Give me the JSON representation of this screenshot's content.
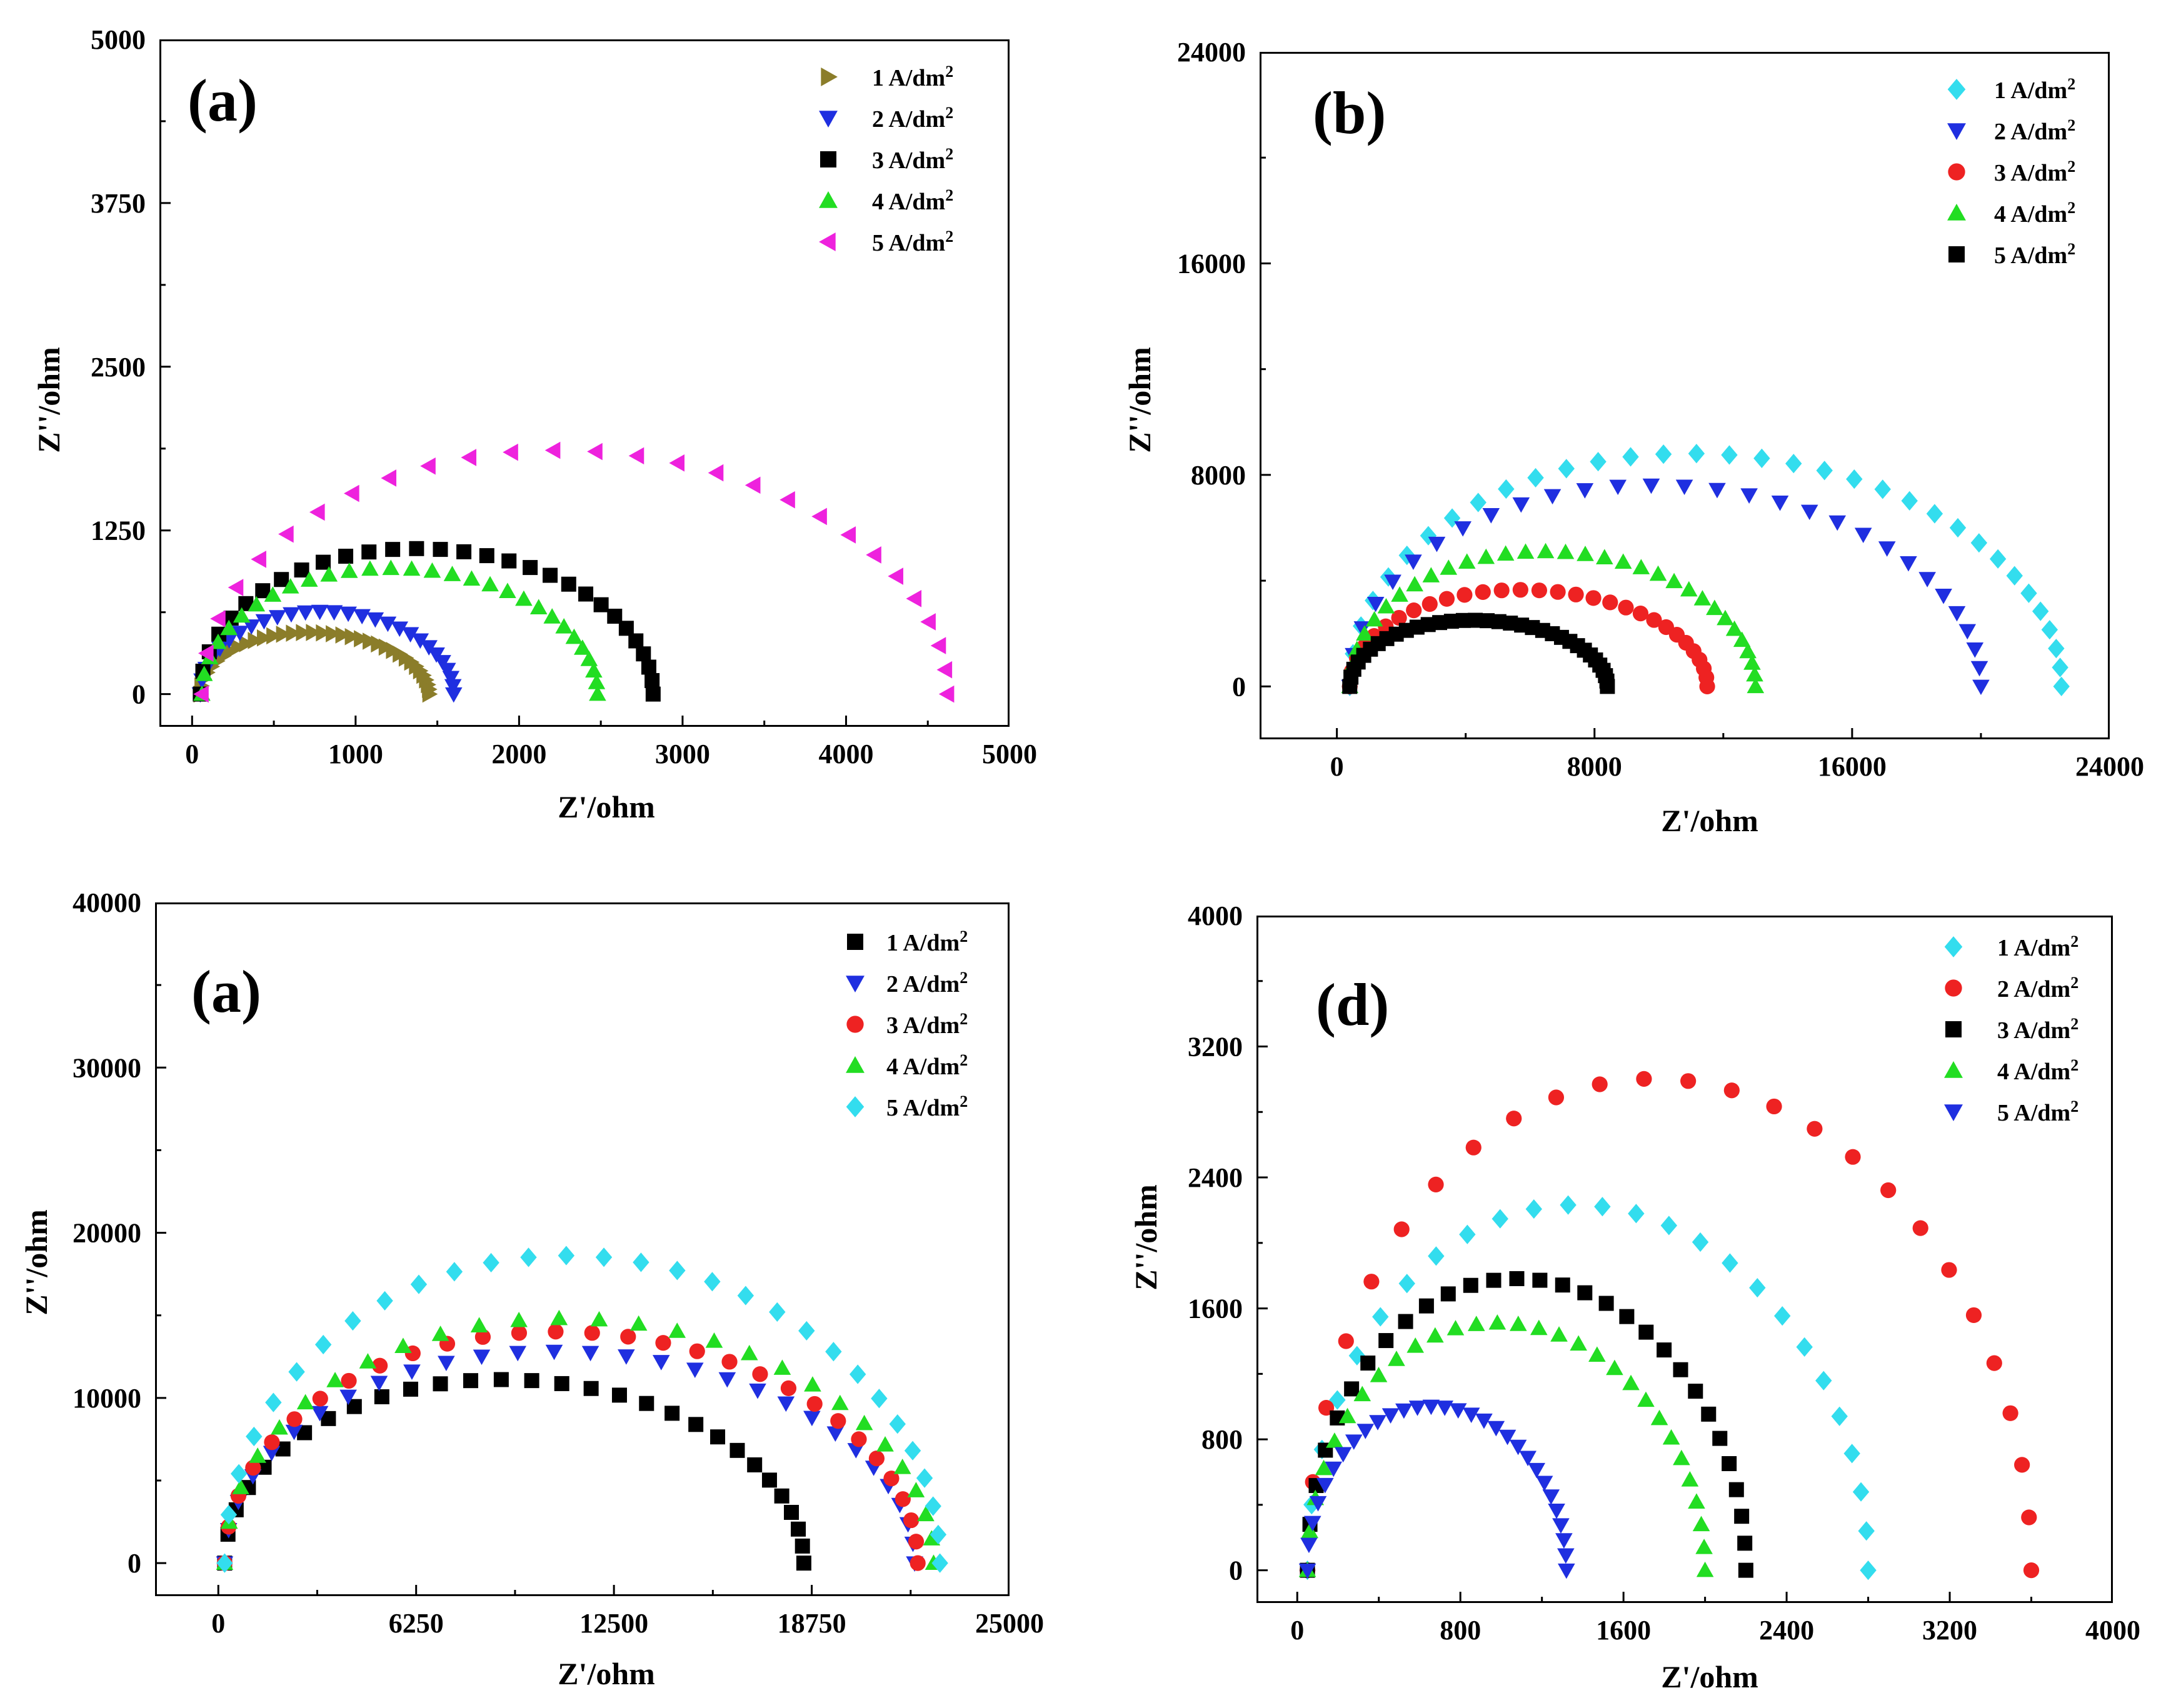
{
  "chart_data": [
    {
      "type": "scatter",
      "panel_label": "(a)",
      "xlabel": "Z'/ohm",
      "ylabel": "Z''/ohm",
      "xlim": [
        -200,
        5000
      ],
      "ylim": [
        -250,
        5000
      ],
      "xticks": [
        0,
        1000,
        2000,
        3000,
        4000,
        5000
      ],
      "xtick_labels": [
        "0",
        "1000",
        "2000",
        "3000",
        "4000",
        "5000"
      ],
      "yticks": [
        0,
        1250,
        2500,
        3750,
        5000
      ],
      "ytick_labels": [
        "0",
        "1250",
        "2500",
        "3750",
        "5000"
      ],
      "legend_position": "top-right",
      "series": [
        {
          "name": "1 A/dm",
          "sup": "2",
          "color": "#8b7d2a",
          "marker": "triangle-right",
          "arc": [
            50,
            1450,
            470
          ],
          "n": 36
        },
        {
          "name": "2 A/dm",
          "sup": "2",
          "color": "#1f2fe0",
          "marker": "triangle-down",
          "arc": [
            50,
            1600,
            630
          ],
          "n": 28
        },
        {
          "name": "3 A/dm",
          "sup": "2",
          "color": "#000000",
          "marker": "square",
          "arc": [
            50,
            2820,
            1110
          ],
          "n": 30
        },
        {
          "name": "4 A/dm",
          "sup": "2",
          "color": "#22dd22",
          "marker": "triangle-up",
          "arc": [
            60,
            2480,
            960
          ],
          "n": 30
        },
        {
          "name": "5 A/dm",
          "sup": "2",
          "color": "#ee22dd",
          "marker": "triangle-left",
          "arc": [
            60,
            4620,
            1860
          ],
          "n": 28
        }
      ]
    },
    {
      "type": "scatter",
      "panel_label": "(b)",
      "xlabel": "Z'/ohm",
      "ylabel": "Z''/ohm",
      "xlim": [
        -2400,
        24000
      ],
      "ylim": [
        -2000,
        24000
      ],
      "xticks": [
        0,
        8000,
        16000,
        24000
      ],
      "xtick_labels": [
        "0",
        "8000",
        "16000",
        "24000"
      ],
      "yticks": [
        0,
        8000,
        16000,
        24000
      ],
      "ytick_labels": [
        "0",
        "8000",
        "16000",
        "24000"
      ],
      "legend_position": "top-right",
      "series": [
        {
          "name": "1 A/dm",
          "sup": "2",
          "color": "#33ddee",
          "marker": "diamond",
          "arc": [
            400,
            22500,
            8800
          ],
          "n": 34
        },
        {
          "name": "2 A/dm",
          "sup": "2",
          "color": "#1f2fe0",
          "marker": "triangle-down",
          "arc": [
            400,
            20000,
            7600
          ],
          "n": 30
        },
        {
          "name": "3 A/dm",
          "sup": "2",
          "color": "#ee2222",
          "marker": "circle",
          "arc": [
            400,
            11500,
            3650
          ],
          "n": 30
        },
        {
          "name": "4 A/dm",
          "sup": "2",
          "color": "#22dd22",
          "marker": "triangle-up",
          "arc": [
            400,
            13000,
            5100
          ],
          "n": 32
        },
        {
          "name": "5 A/dm",
          "sup": "2",
          "color": "#000000",
          "marker": "square",
          "arc": [
            400,
            8400,
            2500
          ],
          "n": 34
        }
      ]
    },
    {
      "type": "scatter",
      "panel_label": "(a)",
      "xlabel": "Z'/ohm",
      "ylabel": "Z''/ohm",
      "xlim": [
        -2000,
        25000
      ],
      "ylim": [
        -2000,
        40000
      ],
      "xticks": [
        0,
        6250,
        12500,
        18750,
        25000
      ],
      "xtick_labels": [
        "0",
        "6250",
        "12500",
        "18750",
        "25000"
      ],
      "yticks": [
        0,
        10000,
        20000,
        30000,
        40000
      ],
      "ytick_labels": [
        "0",
        "10000",
        "20000",
        "30000",
        "40000"
      ],
      "legend_position": "top-right",
      "series": [
        {
          "name": "1 A/dm",
          "sup": "2",
          "color": "#000000",
          "marker": "square",
          "arc": [
            200,
            18500,
            11100
          ],
          "n": 30
        },
        {
          "name": "2 A/dm",
          "sup": "2",
          "color": "#1f2fe0",
          "marker": "triangle-down",
          "arc": [
            200,
            22000,
            12800
          ],
          "n": 30
        },
        {
          "name": "3 A/dm",
          "sup": "2",
          "color": "#ee2222",
          "marker": "circle",
          "arc": [
            200,
            22100,
            14000
          ],
          "n": 30
        },
        {
          "name": "4 A/dm",
          "sup": "2",
          "color": "#22dd22",
          "marker": "triangle-up",
          "arc": [
            200,
            22600,
            14800
          ],
          "n": 28
        },
        {
          "name": "5 A/dm",
          "sup": "2",
          "color": "#33ddee",
          "marker": "diamond",
          "arc": [
            200,
            22800,
            18600
          ],
          "n": 30
        }
      ]
    },
    {
      "type": "scatter",
      "panel_label": "(d)",
      "xlabel": "Z'/ohm",
      "ylabel": "Z''/ohm",
      "xlim": [
        -200,
        4000
      ],
      "ylim": [
        -200,
        4000
      ],
      "xticks": [
        0,
        800,
        1600,
        2400,
        3200,
        4000
      ],
      "xtick_labels": [
        "0",
        "800",
        "1600",
        "2400",
        "3200",
        "4000"
      ],
      "yticks": [
        0,
        800,
        1600,
        2400,
        3200,
        4000
      ],
      "ytick_labels": [
        "0",
        "800",
        "1600",
        "2400",
        "3200",
        "4000"
      ],
      "legend_position": "top-right",
      "series": [
        {
          "name": "1 A/dm",
          "sup": "2",
          "color": "#33ddee",
          "marker": "diamond",
          "arc": [
            50,
            2800,
            2230
          ],
          "n": 26
        },
        {
          "name": "2 A/dm",
          "sup": "2",
          "color": "#ee2222",
          "marker": "circle",
          "arc": [
            50,
            3600,
            3000
          ],
          "n": 26
        },
        {
          "name": "3 A/dm",
          "sup": "2",
          "color": "#000000",
          "marker": "square",
          "arc": [
            50,
            2200,
            1780
          ],
          "n": 30
        },
        {
          "name": "4 A/dm",
          "sup": "2",
          "color": "#22dd22",
          "marker": "triangle-up",
          "arc": [
            50,
            2000,
            1510
          ],
          "n": 30
        },
        {
          "name": "5 A/dm",
          "sup": "2",
          "color": "#1f2fe0",
          "marker": "triangle-down",
          "arc": [
            50,
            1320,
            1000
          ],
          "n": 30
        }
      ]
    }
  ]
}
